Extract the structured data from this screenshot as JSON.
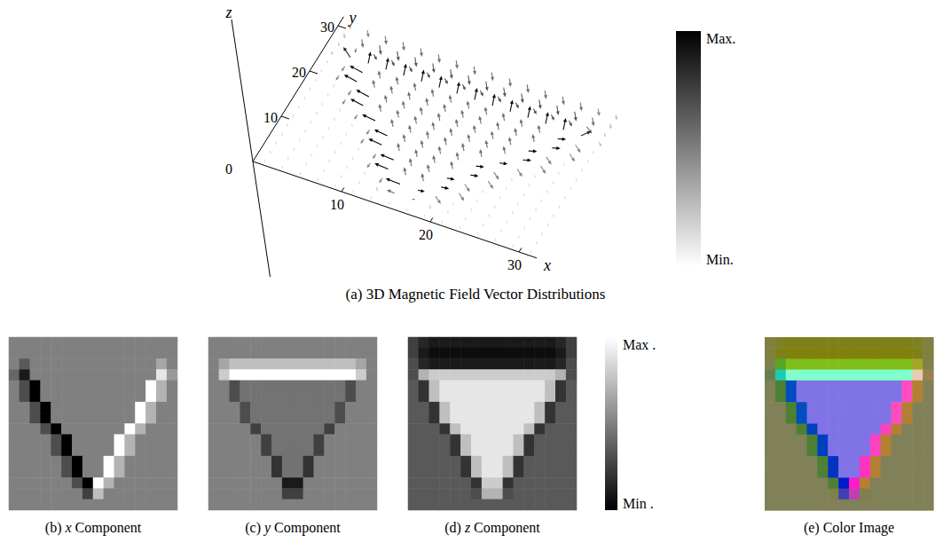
{
  "chart_data": {
    "type": "vector_field",
    "x": [
      1,
      3,
      5,
      7,
      9,
      11,
      13,
      15,
      17,
      19,
      21,
      23,
      25,
      27,
      29,
      31
    ],
    "y": [
      31,
      29,
      27,
      25,
      23,
      21,
      19,
      17,
      15,
      13,
      11,
      9,
      7,
      5,
      3,
      1
    ],
    "components": {
      "x": [
        [
          0,
          0,
          0,
          0,
          0,
          0,
          0,
          0,
          0,
          0,
          0,
          0,
          0,
          0,
          0,
          0
        ],
        [
          0,
          0,
          0,
          0,
          0,
          0,
          0,
          0,
          0,
          0,
          0,
          0,
          0,
          0,
          0,
          0
        ],
        [
          0,
          -3,
          0,
          0,
          0,
          0,
          0,
          0,
          0,
          0,
          0,
          0,
          0,
          0,
          3,
          0
        ],
        [
          -2,
          -8,
          0,
          0,
          0,
          0,
          0,
          0,
          0,
          0,
          0,
          0,
          0,
          0,
          8,
          2
        ],
        [
          0,
          -4,
          -10,
          0,
          0,
          0,
          0,
          0,
          0,
          0,
          0,
          0,
          0,
          10,
          4,
          0
        ],
        [
          0,
          -4,
          -10,
          0,
          0,
          0,
          0,
          0,
          0,
          0,
          0,
          0,
          0,
          10,
          4,
          0
        ],
        [
          0,
          0,
          -4,
          -10,
          0,
          0,
          0,
          0,
          0,
          0,
          0,
          0,
          10,
          4,
          0,
          0
        ],
        [
          0,
          0,
          -4,
          -10,
          0,
          0,
          0,
          0,
          0,
          0,
          0,
          0,
          10,
          4,
          0,
          0
        ],
        [
          0,
          0,
          0,
          -4,
          -10,
          0,
          0,
          0,
          0,
          0,
          0,
          10,
          4,
          0,
          0,
          0
        ],
        [
          0,
          0,
          0,
          0,
          -4,
          -10,
          0,
          0,
          0,
          0,
          10,
          4,
          0,
          0,
          0,
          0
        ],
        [
          0,
          0,
          0,
          0,
          -4,
          -10,
          0,
          0,
          0,
          0,
          10,
          4,
          0,
          0,
          0,
          0
        ],
        [
          0,
          0,
          0,
          0,
          0,
          -4,
          -10,
          0,
          0,
          10,
          4,
          0,
          0,
          0,
          0,
          0
        ],
        [
          0,
          0,
          0,
          0,
          0,
          -4,
          -10,
          0,
          0,
          10,
          4,
          0,
          0,
          0,
          0,
          0
        ],
        [
          0,
          0,
          0,
          0,
          0,
          0,
          -4,
          -10,
          10,
          4,
          0,
          0,
          0,
          0,
          0,
          0
        ],
        [
          0,
          0,
          0,
          0,
          0,
          0,
          0,
          -5,
          5,
          0,
          0,
          0,
          0,
          0,
          0,
          0
        ],
        [
          0,
          0,
          0,
          0,
          0,
          0,
          0,
          0,
          0,
          0,
          0,
          0,
          0,
          0,
          0,
          0
        ]
      ],
      "y": [
        [
          0,
          0,
          0,
          0,
          0,
          0,
          0,
          0,
          0,
          0,
          0,
          0,
          0,
          0,
          0,
          0
        ],
        [
          0,
          0,
          0,
          0,
          0,
          0,
          0,
          0,
          0,
          0,
          0,
          0,
          0,
          0,
          0,
          0
        ],
        [
          0,
          3,
          5,
          5,
          5,
          5,
          5,
          5,
          5,
          5,
          5,
          5,
          5,
          5,
          3,
          0
        ],
        [
          0,
          6,
          10,
          10,
          10,
          10,
          10,
          10,
          10,
          10,
          10,
          10,
          10,
          10,
          6,
          0
        ],
        [
          0,
          0,
          -4,
          -1,
          -1,
          -1,
          -1,
          -1,
          -1,
          -1,
          -1,
          -1,
          -1,
          -4,
          0,
          0
        ],
        [
          0,
          0,
          -4,
          -1,
          -1,
          -1,
          -1,
          -1,
          -1,
          -1,
          -1,
          -1,
          -1,
          -4,
          0,
          0
        ],
        [
          0,
          0,
          0,
          -4,
          -1,
          -1,
          -1,
          -1,
          -1,
          -1,
          -1,
          -1,
          -4,
          0,
          0,
          0
        ],
        [
          0,
          0,
          0,
          -4,
          -1,
          -1,
          -1,
          -1,
          -1,
          -1,
          -1,
          -1,
          -4,
          0,
          0,
          0
        ],
        [
          0,
          0,
          0,
          0,
          -5,
          -1,
          -1,
          -1,
          -1,
          -1,
          -1,
          -5,
          0,
          0,
          0,
          0
        ],
        [
          0,
          0,
          0,
          0,
          0,
          -5,
          -1,
          -1,
          -1,
          -1,
          -5,
          0,
          0,
          0,
          0,
          0
        ],
        [
          0,
          0,
          0,
          0,
          0,
          -5,
          -1,
          -1,
          -1,
          -1,
          -5,
          0,
          0,
          0,
          0,
          0
        ],
        [
          0,
          0,
          0,
          0,
          0,
          0,
          -6,
          -1,
          -1,
          -6,
          0,
          0,
          0,
          0,
          0,
          0
        ],
        [
          0,
          0,
          0,
          0,
          0,
          0,
          -6,
          -1,
          -1,
          -6,
          0,
          0,
          0,
          0,
          0,
          0
        ],
        [
          0,
          0,
          0,
          0,
          0,
          0,
          0,
          -8,
          -8,
          0,
          0,
          0,
          0,
          0,
          0,
          0
        ],
        [
          0,
          0,
          0,
          0,
          0,
          0,
          0,
          -5,
          -5,
          0,
          0,
          0,
          0,
          0,
          0,
          0
        ],
        [
          0,
          0,
          0,
          0,
          0,
          0,
          0,
          0,
          0,
          0,
          0,
          0,
          0,
          0,
          0,
          0
        ]
      ],
      "z": [
        [
          -5,
          -7,
          -8,
          -8,
          -8,
          -8,
          -8,
          -8,
          -8,
          -8,
          -8,
          -8,
          -8,
          -8,
          -7,
          -5
        ],
        [
          -5,
          -8,
          -9,
          -9,
          -9,
          -9,
          -9,
          -9,
          -9,
          -9,
          -9,
          -9,
          -9,
          -9,
          -8,
          -5
        ],
        [
          -4,
          -7,
          -8,
          -8,
          -8,
          -8,
          -8,
          -8,
          -8,
          -8,
          -8,
          -8,
          -8,
          -8,
          -7,
          -4
        ],
        [
          -4,
          4,
          6,
          6,
          6,
          6,
          6,
          6,
          6,
          6,
          6,
          6,
          6,
          6,
          4,
          -4
        ],
        [
          -3,
          -6,
          5,
          8,
          8,
          8,
          8,
          8,
          8,
          8,
          8,
          8,
          8,
          5,
          -6,
          -3
        ],
        [
          -3,
          -6,
          5,
          8,
          8,
          8,
          8,
          8,
          8,
          8,
          8,
          8,
          8,
          5,
          -6,
          -3
        ],
        [
          -3,
          -3,
          -6,
          5,
          8,
          8,
          8,
          8,
          8,
          8,
          8,
          8,
          5,
          -6,
          -3,
          -3
        ],
        [
          -3,
          -3,
          -6,
          5,
          8,
          8,
          8,
          8,
          8,
          8,
          8,
          8,
          5,
          -6,
          -3,
          -3
        ],
        [
          -3,
          -3,
          -3,
          -6,
          5,
          8,
          8,
          8,
          8,
          8,
          8,
          5,
          -6,
          -3,
          -3,
          -3
        ],
        [
          -3,
          -3,
          -3,
          -3,
          -6,
          5,
          8,
          8,
          8,
          8,
          5,
          -6,
          -3,
          -3,
          -3,
          -3
        ],
        [
          -3,
          -3,
          -3,
          -3,
          -6,
          5,
          8,
          8,
          8,
          8,
          5,
          -6,
          -3,
          -3,
          -3,
          -3
        ],
        [
          -3,
          -3,
          -3,
          -3,
          -3,
          -6,
          5,
          8,
          8,
          5,
          -6,
          -3,
          -3,
          -3,
          -3,
          -3
        ],
        [
          -3,
          -3,
          -3,
          -3,
          -3,
          -6,
          5,
          8,
          8,
          5,
          -6,
          -3,
          -3,
          -3,
          -3,
          -3
        ],
        [
          -3,
          -3,
          -3,
          -3,
          -3,
          -3,
          -6,
          6,
          6,
          -6,
          -3,
          -3,
          -3,
          -3,
          -3,
          -3
        ],
        [
          -3,
          -3,
          -3,
          -3,
          -3,
          -3,
          -4,
          4,
          4,
          -4,
          -3,
          -3,
          -3,
          -3,
          -3,
          -3
        ],
        [
          -3,
          -3,
          -3,
          -3,
          -3,
          -3,
          -3,
          -3,
          -3,
          -3,
          -3,
          -3,
          -3,
          -3,
          -3,
          -3
        ]
      ]
    },
    "panels": [
      {
        "type": "quiver3d",
        "title": "(a) 3D Magnetic Field Vector Distributions",
        "xlabel": "x",
        "ylabel": "y",
        "zlabel": "z",
        "xlim": [
          0,
          32
        ],
        "ylim": [
          0,
          32
        ],
        "zlim": [
          -13,
          16
        ],
        "xticks": [
          0,
          10,
          20,
          30
        ],
        "yticks": [
          10,
          20,
          30
        ],
        "colorbar": {
          "range": [
            0,
            12
          ],
          "ticks": [
            {
              "value": 12,
              "label": "Max."
            },
            {
              "value": 0,
              "label": "Min."
            }
          ]
        }
      },
      {
        "type": "heatmap",
        "title": "(b) x Component",
        "component": "x"
      },
      {
        "type": "heatmap",
        "title": "(c) y Component",
        "component": "y"
      },
      {
        "type": "heatmap",
        "title": "(d) z Component",
        "component": "z"
      },
      {
        "type": "rgb_image",
        "title": "(e) Color Image",
        "channels": [
          "x",
          "y",
          "z"
        ]
      }
    ],
    "colorbar": {
      "range": [
        -10,
        10
      ],
      "ticks": [
        {
          "value": 10,
          "label": "Max ."
        },
        {
          "value": -10,
          "label": "Min ."
        }
      ]
    }
  }
}
